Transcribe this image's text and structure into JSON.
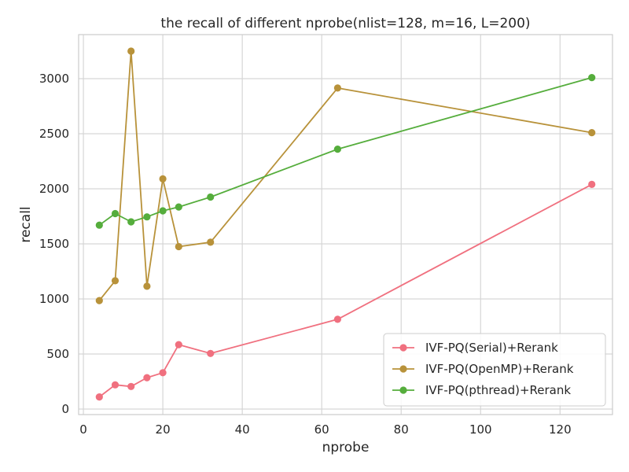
{
  "chart_data": {
    "type": "line",
    "title": "the recall of different nprobe(nlist=128, m=16, L=200)",
    "xlabel": "nprobe",
    "ylabel": "recall",
    "xlim": [
      -1.2,
      133.2
    ],
    "ylim": [
      -50,
      3400
    ],
    "xticks": [
      0,
      20,
      40,
      60,
      80,
      100,
      120
    ],
    "yticks": [
      0,
      500,
      1000,
      1500,
      2000,
      2500,
      3000
    ],
    "grid": true,
    "legend_position": "bottom-right",
    "x": [
      4,
      8,
      12,
      16,
      20,
      24,
      32,
      64,
      128
    ],
    "series": [
      {
        "name": "IVF-PQ(Serial)+Rerank",
        "color": "#f0707f",
        "values": [
          110,
          220,
          205,
          285,
          330,
          585,
          505,
          815,
          2040
        ]
      },
      {
        "name": "IVF-PQ(OpenMP)+Rerank",
        "color": "#b8923a",
        "values": [
          985,
          1165,
          3250,
          1115,
          2090,
          1475,
          1515,
          2915,
          2510
        ]
      },
      {
        "name": "IVF-PQ(pthread)+Rerank",
        "color": "#55ad3c",
        "values": [
          1670,
          1775,
          1700,
          1745,
          1800,
          1835,
          1925,
          2360,
          3010
        ]
      }
    ]
  }
}
